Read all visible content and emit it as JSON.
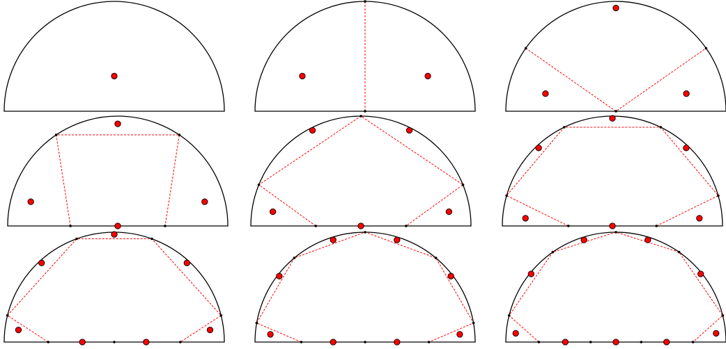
{
  "figure": {
    "panel_count": 9,
    "grid": {
      "rows": 3,
      "columns": 3
    },
    "shape": "semicircle",
    "colors": {
      "background": "#ffffff",
      "outline": "#000000",
      "partition_lines": "#ff0000",
      "points_fill": "#ff0000",
      "points_stroke": "#000000"
    },
    "line_style": "dashed"
  },
  "panels": [
    {
      "index": 1,
      "points": 1
    },
    {
      "index": 2,
      "points": 2
    },
    {
      "index": 3,
      "points": 3
    },
    {
      "index": 4,
      "points": 4
    },
    {
      "index": 5,
      "points": 5
    },
    {
      "index": 6,
      "points": 6
    },
    {
      "index": 7,
      "points": 7
    },
    {
      "index": 8,
      "points": 8
    },
    {
      "index": 9,
      "points": 9
    }
  ]
}
